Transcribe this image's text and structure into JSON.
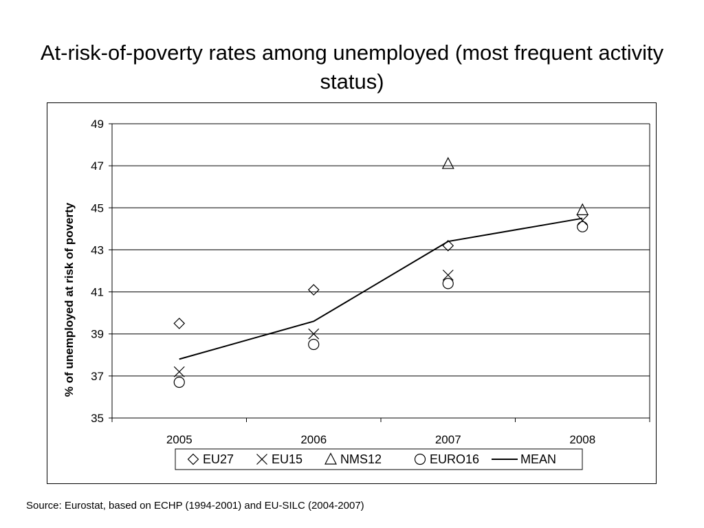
{
  "title": "At-risk-of-poverty rates among unemployed (most frequent activity status)",
  "source": "Source: Eurostat, based on ECHP (1994-2001) and EU-SILC (2004-2007)",
  "colors": {
    "marker": "#000000",
    "gridline": "#000000",
    "background": "#ffffff"
  },
  "chart_data": {
    "type": "scatter",
    "title": "At-risk-of-poverty rates among unemployed (most frequent activity status)",
    "xlabel": "",
    "ylabel": "% of unemployed at risk of poverty",
    "categories": [
      "2005",
      "2006",
      "2007",
      "2008"
    ],
    "ylim": [
      35,
      49
    ],
    "yticks": [
      35,
      37,
      39,
      41,
      43,
      45,
      47,
      49
    ],
    "grid": "horizontal",
    "legend_position": "bottom",
    "series": [
      {
        "name": "EU27",
        "marker": "diamond",
        "values": [
          39.5,
          41.1,
          43.2,
          null
        ]
      },
      {
        "name": "EU15",
        "marker": "cross",
        "values": [
          37.2,
          39.0,
          41.8,
          44.4
        ]
      },
      {
        "name": "NMS12",
        "marker": "triangle",
        "values": [
          null,
          null,
          47.1,
          44.9
        ]
      },
      {
        "name": "EURO16",
        "marker": "circle",
        "values": [
          36.7,
          38.5,
          41.4,
          44.1
        ]
      },
      {
        "name": "MEAN",
        "marker": "line",
        "values": [
          37.8,
          39.6,
          43.4,
          44.5
        ]
      }
    ]
  }
}
